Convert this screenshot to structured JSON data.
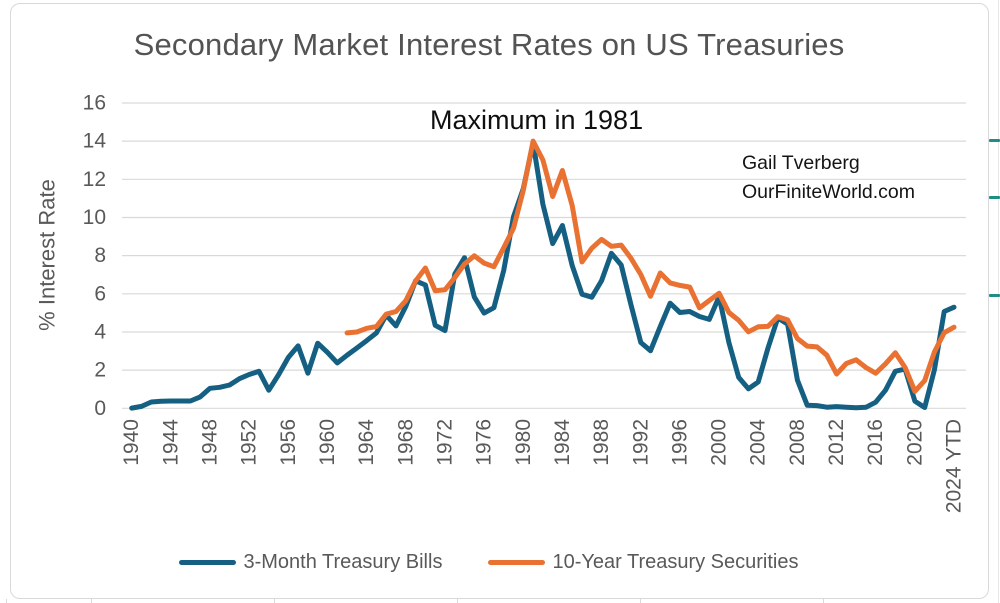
{
  "title": "Secondary Market Interest Rates on US Treasuries",
  "annotation": "Maximum in 1981",
  "attribution": {
    "line1": "Gail Tverberg",
    "line2": "OurFiniteWorld.com"
  },
  "y_axis": {
    "label": "% Interest Rate",
    "ticks": [
      0,
      2,
      4,
      6,
      8,
      10,
      12,
      14,
      16
    ]
  },
  "x_axis": {
    "tick_step_years": 4,
    "tick_labels": [
      "1940",
      "1944",
      "1948",
      "1952",
      "1956",
      "1960",
      "1964",
      "1968",
      "1972",
      "1976",
      "1980",
      "1984",
      "1988",
      "1992",
      "1996",
      "2000",
      "2004",
      "2008",
      "2012",
      "2016",
      "2020",
      "2024 YTD"
    ]
  },
  "colors": {
    "series_blue": "#156082",
    "series_orange": "#E97132",
    "gridline": "#D9D9D9",
    "axis_text": "#595959",
    "title_text": "#535353",
    "annotation_text": "#0f0f0f",
    "attribution_text": "#141414",
    "legend_text": "#595959",
    "card_border": "#D9D9D9",
    "worksheet_dash": "#1E8E85"
  },
  "chart_data": {
    "type": "line",
    "title": "Secondary Market Interest Rates on US Treasuries",
    "xlabel": "",
    "ylabel": "% Interest Rate",
    "ylim": [
      0,
      16
    ],
    "grid": true,
    "legend_position": "bottom",
    "x_unit": "year",
    "series": [
      {
        "name": "3-Month Treasury Bills",
        "color": "#156082",
        "start_year": 1940,
        "values": [
          0.01,
          0.1,
          0.33,
          0.37,
          0.38,
          0.38,
          0.38,
          0.6,
          1.05,
          1.1,
          1.22,
          1.55,
          1.77,
          1.94,
          0.95,
          1.75,
          2.66,
          3.27,
          1.84,
          3.41,
          2.93,
          2.38,
          2.78,
          3.16,
          3.55,
          3.95,
          4.88,
          4.32,
          5.34,
          6.68,
          6.46,
          4.35,
          4.07,
          7.04,
          7.89,
          5.84,
          4.99,
          5.27,
          7.22,
          10.04,
          11.51,
          13.9,
          10.69,
          8.63,
          9.58,
          7.48,
          5.98,
          5.82,
          6.69,
          8.12,
          7.51,
          5.42,
          3.45,
          3.02,
          4.29,
          5.51,
          5.02,
          5.07,
          4.81,
          4.66,
          5.85,
          3.45,
          1.62,
          1.02,
          1.38,
          3.16,
          4.73,
          4.41,
          1.48,
          0.16,
          0.14,
          0.06,
          0.09,
          0.06,
          0.03,
          0.05,
          0.32,
          0.95,
          1.94,
          2.06,
          0.37,
          0.04,
          2.02,
          5.07,
          5.3
        ]
      },
      {
        "name": "10-Year Treasury Securities",
        "color": "#E97132",
        "start_year": 1962,
        "values": [
          3.95,
          4.0,
          4.19,
          4.28,
          4.93,
          5.07,
          5.64,
          6.67,
          7.35,
          6.16,
          6.21,
          6.85,
          7.56,
          7.99,
          7.61,
          7.42,
          8.41,
          9.43,
          11.43,
          14.0,
          13.01,
          11.1,
          12.46,
          10.62,
          7.67,
          8.39,
          8.85,
          8.49,
          8.55,
          7.86,
          7.01,
          5.87,
          7.09,
          6.57,
          6.44,
          6.35,
          5.26,
          5.65,
          6.03,
          5.02,
          4.61,
          4.01,
          4.27,
          4.29,
          4.8,
          4.63,
          3.66,
          3.26,
          3.22,
          2.78,
          1.8,
          2.35,
          2.54,
          2.14,
          1.84,
          2.33,
          2.91,
          2.14,
          0.89,
          1.45,
          2.95,
          3.96,
          4.25
        ]
      }
    ]
  }
}
